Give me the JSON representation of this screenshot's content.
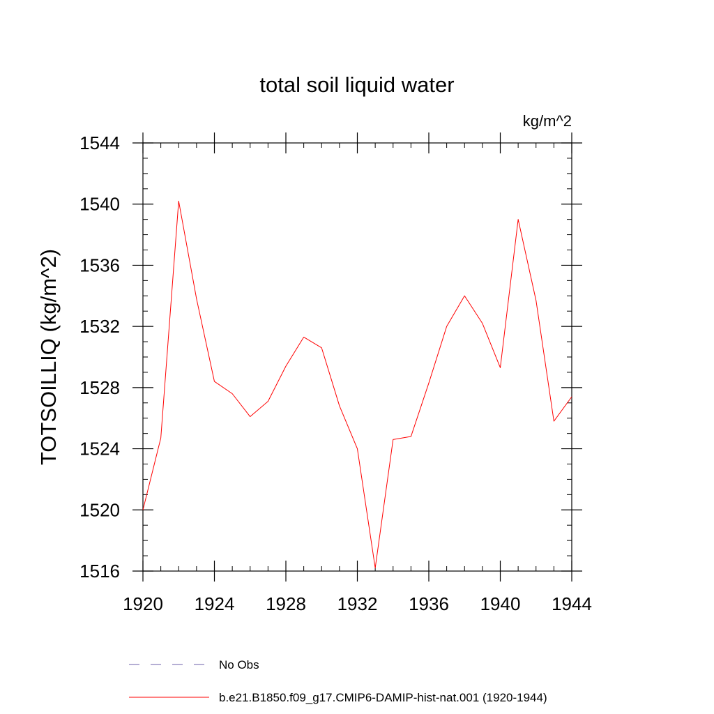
{
  "chart_data": {
    "type": "line",
    "title": "total soil liquid water",
    "units": "kg/m^2",
    "xlabel": "",
    "ylabel": "TOTSOILLIQ  (kg/m^2)",
    "xlim": [
      1920,
      1944
    ],
    "ylim": [
      1516,
      1544
    ],
    "x_ticks": [
      1920,
      1924,
      1928,
      1932,
      1936,
      1940,
      1944
    ],
    "y_ticks": [
      1516,
      1520,
      1524,
      1528,
      1532,
      1536,
      1540,
      1544
    ],
    "x_tick_labels": [
      "1920",
      "1924",
      "1928",
      "1932",
      "1936",
      "1940",
      "1944"
    ],
    "y_tick_labels": [
      "1516",
      "1520",
      "1524",
      "1528",
      "1532",
      "1536",
      "1540",
      "1544"
    ],
    "x_minor_step": 1,
    "y_minor_step": 1,
    "grid": false,
    "legend_position": "bottom",
    "series": [
      {
        "name": "b.e21.B1850.f09_g17.CMIP6-DAMIP-hist-nat.001 (1920-1944)",
        "color": "#ff0000",
        "dash": "solid",
        "x": [
          1920,
          1921,
          1922,
          1923,
          1924,
          1925,
          1926,
          1927,
          1928,
          1929,
          1930,
          1931,
          1932,
          1933,
          1934,
          1935,
          1936,
          1937,
          1938,
          1939,
          1940,
          1941,
          1942,
          1943,
          1944
        ],
        "y": [
          1520.0,
          1524.7,
          1540.2,
          1533.8,
          1528.4,
          1527.6,
          1526.1,
          1527.1,
          1529.4,
          1531.3,
          1530.6,
          1526.8,
          1524.0,
          1516.2,
          1524.6,
          1524.8,
          1528.3,
          1532.0,
          1534.0,
          1532.2,
          1529.3,
          1539.0,
          1533.7,
          1525.8,
          1527.4
        ]
      }
    ],
    "legend": [
      {
        "label": "No Obs",
        "color": "#6b5fa8",
        "dash": "dashed"
      },
      {
        "label": "b.e21.B1850.f09_g17.CMIP6-DAMIP-hist-nat.001 (1920-1944)",
        "color": "#ff0000",
        "dash": "solid"
      }
    ]
  }
}
